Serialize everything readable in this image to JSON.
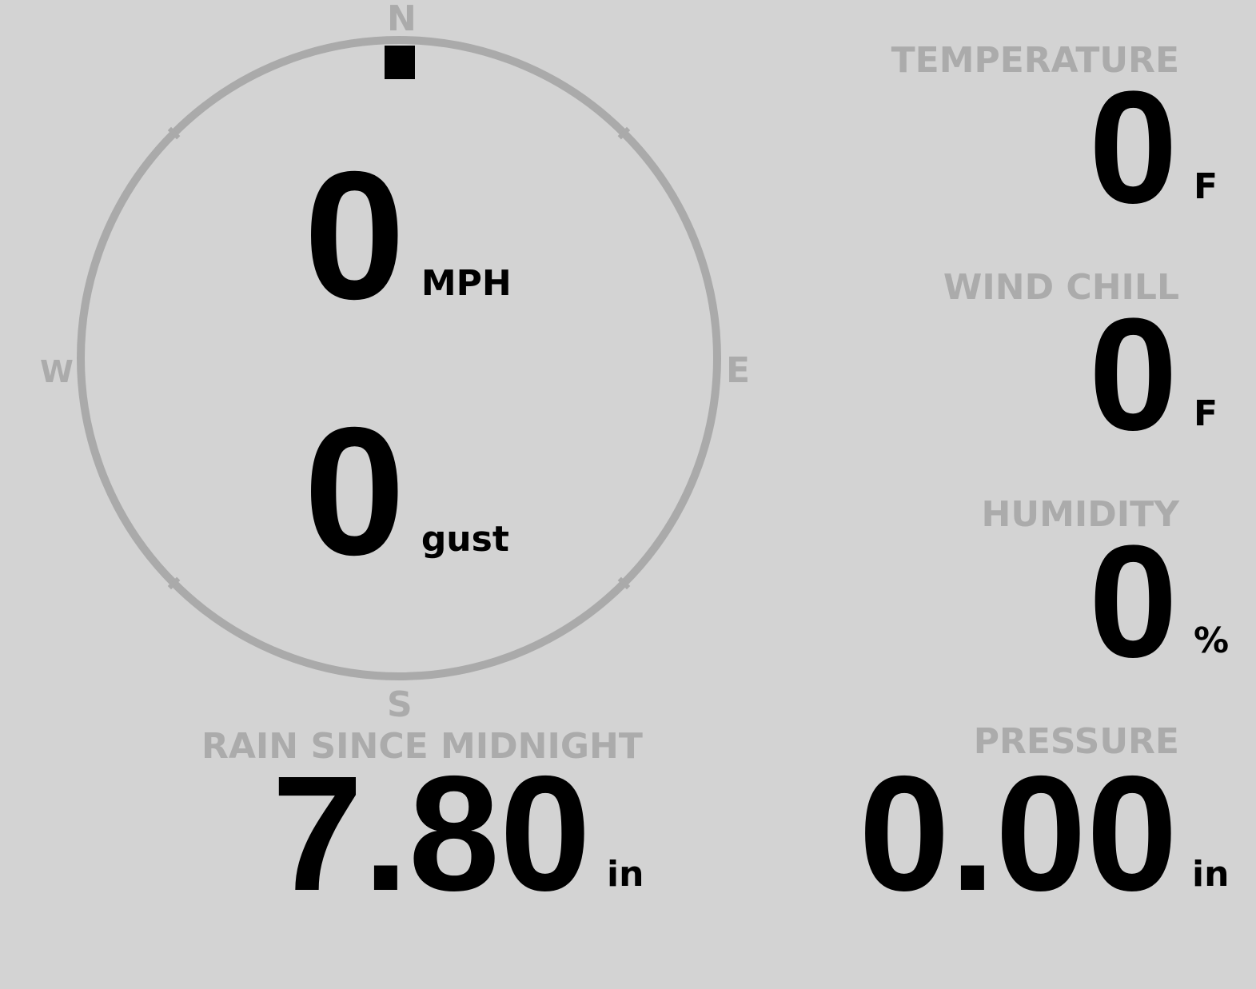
{
  "compass": {
    "north": "N",
    "south": "S",
    "east": "E",
    "west": "W",
    "wind_direction_deg": 0,
    "ring_color": "#aaaaaa",
    "marker_color": "#000000"
  },
  "wind": {
    "speed": "0",
    "speed_unit": "MPH",
    "gust": "0",
    "gust_unit": "gust"
  },
  "rain": {
    "label": "RAIN SINCE MIDNIGHT",
    "value": "7.80",
    "unit": "in"
  },
  "temperature": {
    "label": "TEMPERATURE",
    "value": "0",
    "unit": "F"
  },
  "wind_chill": {
    "label": "WIND CHILL",
    "value": "0",
    "unit": "F"
  },
  "humidity": {
    "label": "HUMIDITY",
    "value": "0",
    "unit": "%"
  },
  "pressure": {
    "label": "PRESSURE",
    "value": "0.00",
    "unit": "in"
  }
}
